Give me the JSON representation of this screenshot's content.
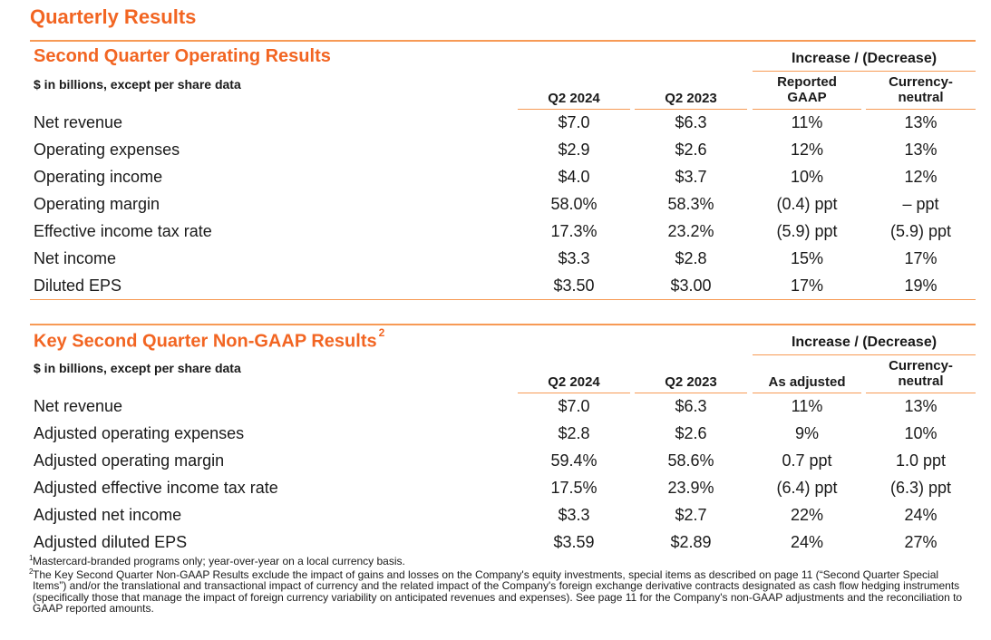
{
  "page_title": "Quarterly Results",
  "section1": {
    "title": "Second Quarter Operating Results",
    "unit_note": "$ in billions, except per share data",
    "increase_label": "Increase / (Decrease)",
    "columns": {
      "q2024": "Q2 2024",
      "q2023": "Q2 2023",
      "col3_line1": "Reported",
      "col3_line2": "GAAP",
      "col4_line1": "Currency-",
      "col4_line2": "neutral"
    },
    "rows": [
      {
        "label": "Net revenue",
        "q2024": "$7.0",
        "q2023": "$6.3",
        "col3": "11%",
        "col4": "13%"
      },
      {
        "label": "Operating expenses",
        "q2024": "$2.9",
        "q2023": "$2.6",
        "col3": "12%",
        "col4": "13%"
      },
      {
        "label": "Operating income",
        "q2024": "$4.0",
        "q2023": "$3.7",
        "col3": "10%",
        "col4": "12%"
      },
      {
        "label": "Operating margin",
        "q2024": "58.0%",
        "q2023": "58.3%",
        "col3": "(0.4) ppt",
        "col4": "– ppt"
      },
      {
        "label": "Effective income tax rate",
        "q2024": "17.3%",
        "q2023": "23.2%",
        "col3": "(5.9) ppt",
        "col4": "(5.9) ppt"
      },
      {
        "label": "Net income",
        "q2024": "$3.3",
        "q2023": "$2.8",
        "col3": "15%",
        "col4": "17%"
      },
      {
        "label": "Diluted EPS",
        "q2024": "$3.50",
        "q2023": "$3.00",
        "col3": "17%",
        "col4": "19%"
      }
    ]
  },
  "section2": {
    "title": "Key Second Quarter Non-GAAP Results",
    "title_sup": "2",
    "unit_note": "$ in billions, except per share data",
    "increase_label": "Increase / (Decrease)",
    "columns": {
      "q2024": "Q2 2024",
      "q2023": "Q2 2023",
      "col3": "As adjusted",
      "col4_line1": "Currency-",
      "col4_line2": "neutral"
    },
    "rows": [
      {
        "label": "Net revenue",
        "q2024": "$7.0",
        "q2023": "$6.3",
        "col3": "11%",
        "col4": "13%"
      },
      {
        "label": "Adjusted operating expenses",
        "q2024": "$2.8",
        "q2023": "$2.6",
        "col3": "9%",
        "col4": "10%"
      },
      {
        "label": "Adjusted operating margin",
        "q2024": "59.4%",
        "q2023": "58.6%",
        "col3": "0.7 ppt",
        "col4": "1.0 ppt"
      },
      {
        "label": "Adjusted effective income tax rate",
        "q2024": "17.5%",
        "q2023": "23.9%",
        "col3": "(6.4) ppt",
        "col4": "(6.3) ppt"
      },
      {
        "label": "Adjusted net income",
        "q2024": "$3.3",
        "q2023": "$2.7",
        "col3": "22%",
        "col4": "24%"
      },
      {
        "label": "Adjusted diluted EPS",
        "q2024": "$3.59",
        "q2023": "$2.89",
        "col3": "24%",
        "col4": "27%"
      }
    ]
  },
  "footnotes": [
    {
      "mark": "1",
      "text": "Mastercard-branded programs only; year-over-year on a local currency basis."
    },
    {
      "mark": "2",
      "text": "The Key Second Quarter Non-GAAP Results exclude the impact of gains and losses on the Company's equity investments, special items as described on page 11 (“Second Quarter Special Items”) and/or the translational and transactional impact of currency and the related impact of the Company's foreign exchange derivative contracts designated as cash flow hedging instruments (specifically those that manage the impact of foreign currency variability on anticipated revenues and expenses). See page 11 for the Company's non-GAAP adjustments and the reconciliation to GAAP reported amounts."
    }
  ]
}
